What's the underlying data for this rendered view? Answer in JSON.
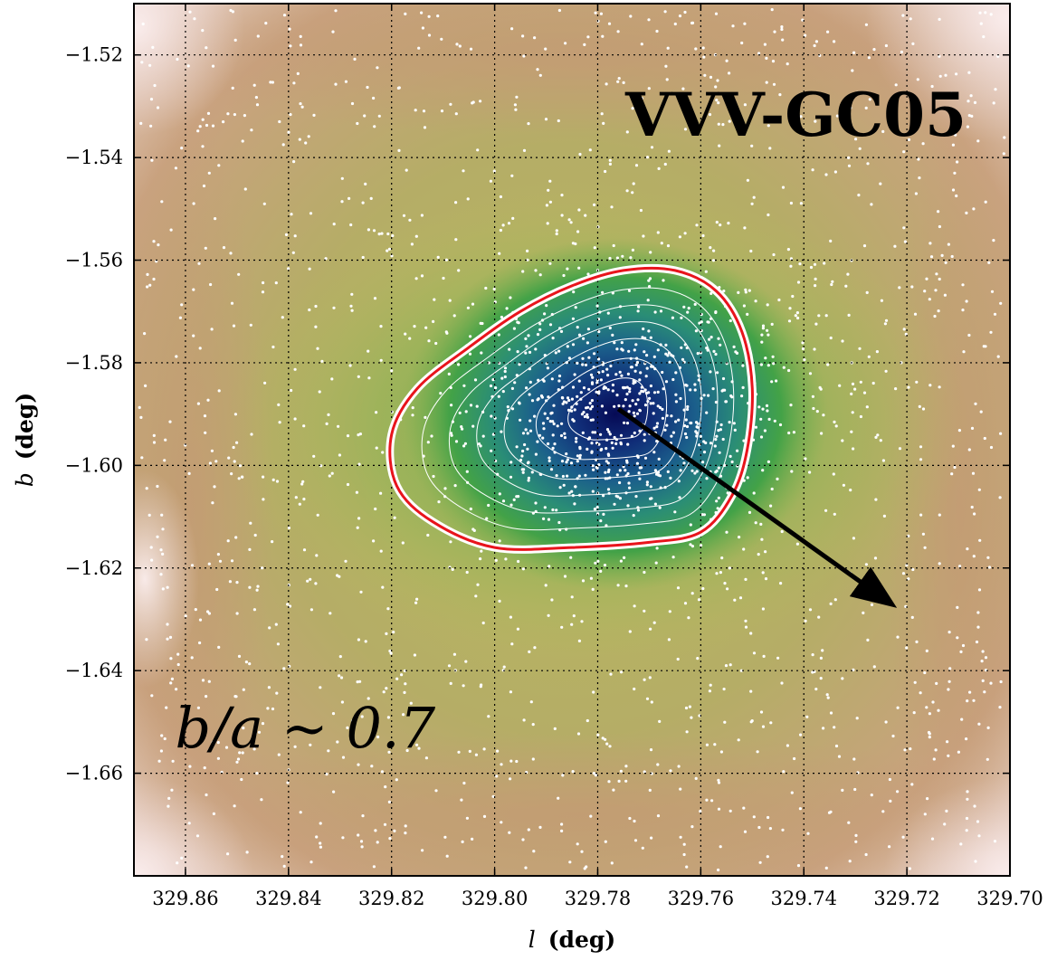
{
  "chart_data": {
    "type": "heatmap",
    "title": "VVV-GC05",
    "xlabel_var": "l",
    "xlabel_unit": "(deg)",
    "ylabel_var": "b",
    "ylabel_unit": "(deg)",
    "xlim": [
      329.87,
      329.7
    ],
    "ylim": [
      -1.68,
      -1.51
    ],
    "x_ticks": [
      329.86,
      329.84,
      329.82,
      329.8,
      329.78,
      329.76,
      329.74,
      329.72,
      329.7
    ],
    "x_tick_labels": [
      "329.86",
      "329.84",
      "329.82",
      "329.80",
      "329.78",
      "329.76",
      "329.74",
      "329.72",
      "329.70"
    ],
    "y_ticks": [
      -1.52,
      -1.54,
      -1.56,
      -1.58,
      -1.6,
      -1.62,
      -1.64,
      -1.66
    ],
    "y_tick_labels": [
      "−1.52",
      "−1.54",
      "−1.56",
      "−1.58",
      "−1.60",
      "−1.62",
      "−1.64",
      "−1.66"
    ],
    "grid": true,
    "grid_style": "dotted",
    "cluster_center": {
      "l": 329.776,
      "b": -1.589
    },
    "red_contour": [
      [
        329.82,
        -1.594
      ],
      [
        329.815,
        -1.585
      ],
      [
        329.805,
        -1.577
      ],
      [
        329.795,
        -1.57
      ],
      [
        329.785,
        -1.565
      ],
      [
        329.775,
        -1.562
      ],
      [
        329.765,
        -1.562
      ],
      [
        329.757,
        -1.566
      ],
      [
        329.752,
        -1.574
      ],
      [
        329.75,
        -1.585
      ],
      [
        329.751,
        -1.597
      ],
      [
        329.754,
        -1.606
      ],
      [
        329.76,
        -1.613
      ],
      [
        329.77,
        -1.615
      ],
      [
        329.785,
        -1.616
      ],
      [
        329.8,
        -1.616
      ],
      [
        329.812,
        -1.611
      ],
      [
        329.819,
        -1.604
      ]
    ],
    "inner_contour_scales": [
      0.22,
      0.36,
      0.5,
      0.62,
      0.74,
      0.86
    ],
    "arrow": {
      "from": {
        "l": 329.776,
        "b": -1.589
      },
      "to": {
        "l": 329.723,
        "b": -1.627
      }
    },
    "annotation": "b/a ~ 0.7",
    "annotation_position": {
      "l": 329.862,
      "b": -1.655
    },
    "colors": {
      "dark_core": "#0a0f5c",
      "blue": "#1c5a8c",
      "teal": "#2a8a7a",
      "green": "#3fa04a",
      "yellow_green": "#b4b85a",
      "tan": "#c8a07a",
      "pale_pink": "#f6e6e6",
      "red_contour": "#e8141c",
      "white_contour": "#ffffff",
      "arrow": "#000000"
    }
  }
}
